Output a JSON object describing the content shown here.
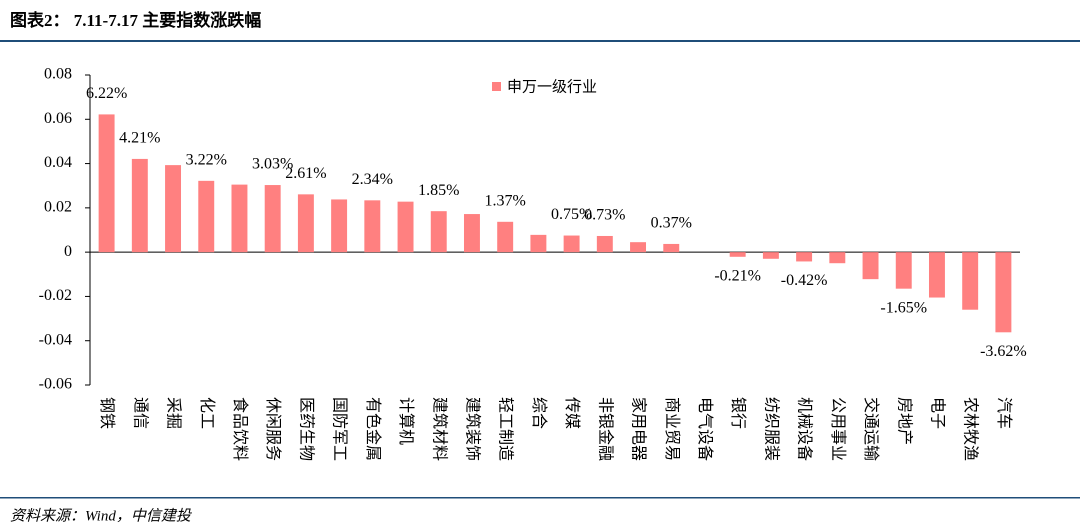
{
  "chart_data": {
    "type": "bar",
    "title": "图表2：  7.11-7.17 主要指数涨跌幅",
    "source": "资料来源：Wind，中信建投",
    "categories": [
      "钢铁",
      "通信",
      "采掘",
      "化工",
      "食品饮料",
      "休闲服务",
      "医药生物",
      "国防军工",
      "有色金属",
      "计算机",
      "建筑材料",
      "建筑装饰",
      "轻工制造",
      "综合",
      "传媒",
      "非银金融",
      "家用电器",
      "商业贸易",
      "电气设备",
      "银行",
      "纺织服装",
      "机械设备",
      "公用事业",
      "交通运输",
      "房地产",
      "电子",
      "农林牧渔",
      "汽车"
    ],
    "series": [
      {
        "name": "申万一级行业",
        "color": "#ff8080",
        "values": [
          0.0622,
          0.0421,
          0.0393,
          0.0322,
          0.0305,
          0.0303,
          0.0261,
          0.0238,
          0.0234,
          0.0228,
          0.0185,
          0.0172,
          0.0137,
          0.0078,
          0.0075,
          0.0073,
          0.0045,
          0.0037,
          0.0,
          -0.0021,
          -0.003,
          -0.0042,
          -0.005,
          -0.0122,
          -0.0165,
          -0.0205,
          -0.026,
          -0.0362
        ],
        "value_labels": [
          "6.22%",
          "4.21%",
          null,
          "3.22%",
          null,
          "3.03%",
          "2.61%",
          null,
          "2.34%",
          null,
          "1.85%",
          null,
          "1.37%",
          null,
          "0.75%",
          "0.73%",
          null,
          "0.37%",
          null,
          "-0.21%",
          null,
          "-0.42%",
          null,
          null,
          "-1.65%",
          null,
          null,
          "-3.62%"
        ]
      }
    ],
    "ylim": [
      -0.06,
      0.08
    ],
    "yticks": [
      -0.06,
      -0.04,
      -0.02,
      0,
      0.02,
      0.04,
      0.06,
      0.08
    ]
  }
}
